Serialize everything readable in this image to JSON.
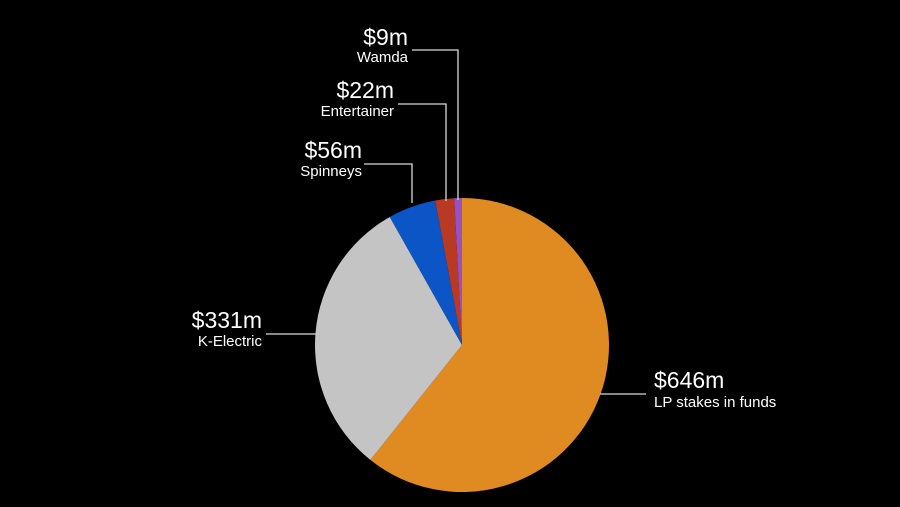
{
  "chart_data": {
    "type": "pie",
    "title": "",
    "slices": [
      {
        "label": "LP stakes in funds",
        "value_label": "$646m",
        "value": 646,
        "color": "#e08a22"
      },
      {
        "label": "K-Electric",
        "value_label": "$331m",
        "value": 331,
        "color": "#c4c4c4"
      },
      {
        "label": "Spinneys",
        "value_label": "$56m",
        "value": 56,
        "color": "#0b55c7"
      },
      {
        "label": "Entertainer",
        "value_label": "$22m",
        "value": 22,
        "color": "#b83a22"
      },
      {
        "label": "Wamda",
        "value_label": "$9m",
        "value": 9,
        "color": "#9b4fc6"
      }
    ]
  }
}
